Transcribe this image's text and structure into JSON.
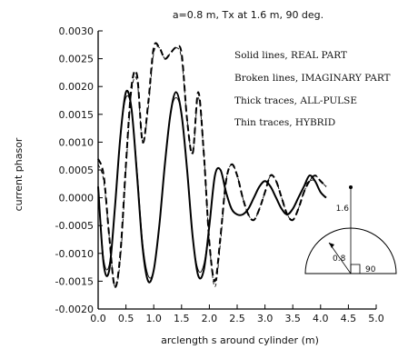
{
  "chart_data": {
    "type": "line",
    "title": "a=0.8 m, Tx at 1.6 m, 90 deg.",
    "xlabel": "arclength s around cylinder (m)",
    "ylabel": "current phasor",
    "xlim": [
      0.0,
      5.0
    ],
    "ylim": [
      -0.002,
      0.003
    ],
    "x_ticks": [
      "0.0",
      "0.5",
      "1.0",
      "1.5",
      "2.0",
      "2.5",
      "3.0",
      "3.5",
      "4.0",
      "4.5",
      "5.0"
    ],
    "y_ticks": [
      "-0.0020",
      "-0.0015",
      "-0.0010",
      "-0.0005",
      "0.0000",
      "0.0005",
      "0.0010",
      "0.0015",
      "0.0020",
      "0.0025",
      "0.0030"
    ],
    "grid": false,
    "legend": [
      "Solid lines, REAL PART",
      "Broken lines, IMAGINARY PART",
      "Thick traces, ALL-PULSE",
      "Thin traces, HYBRID"
    ],
    "legend_position": "top-right",
    "inset": {
      "height_label": "1.6",
      "radius_label": "0.8",
      "angle_label": "90"
    },
    "series": [
      {
        "style": "solid-thick",
        "x": [
          0.0,
          0.1,
          0.2,
          0.3,
          0.4,
          0.5,
          0.6,
          0.7,
          0.8,
          0.9,
          1.0,
          1.1,
          1.2,
          1.3,
          1.4,
          1.5,
          1.6,
          1.7,
          1.8,
          1.9,
          2.0,
          2.1,
          2.2,
          2.3,
          2.4,
          2.5,
          2.6,
          2.7,
          2.8,
          2.9,
          3.0,
          3.1,
          3.2,
          3.3,
          3.4,
          3.5,
          3.6,
          3.7,
          3.8,
          3.9,
          4.0,
          4.1
        ],
        "y": [
          0.0002,
          -0.0012,
          -0.0013,
          -0.0002,
          0.0011,
          0.0019,
          0.0016,
          0.0004,
          -0.0009,
          -0.0015,
          -0.0013,
          -0.0005,
          0.0006,
          0.0015,
          0.0019,
          0.0015,
          0.0005,
          -0.0007,
          -0.0014,
          -0.0013,
          -0.0005,
          0.0004,
          0.0005,
          0.0001,
          -0.0002,
          -0.0003,
          -0.0003,
          -0.0002,
          0.0,
          0.0002,
          0.0003,
          0.0002,
          0.0,
          -0.0002,
          -0.0003,
          -0.0002,
          0.0,
          0.0002,
          0.0004,
          0.0003,
          0.0001,
          0.0
        ]
      },
      {
        "style": "solid-thin",
        "x": [
          0.0,
          0.1,
          0.2,
          0.3,
          0.4,
          0.5,
          0.6,
          0.7,
          0.8,
          0.9,
          1.0,
          1.1,
          1.2,
          1.3,
          1.4,
          1.5,
          1.6,
          1.7,
          1.8,
          1.9,
          2.0,
          2.1,
          2.2,
          2.3,
          2.4,
          2.5,
          2.6,
          2.7,
          2.8,
          2.9,
          3.0,
          3.1,
          3.2,
          3.3,
          3.4,
          3.5,
          3.6,
          3.7,
          3.8,
          3.9,
          4.0,
          4.1
        ],
        "y": [
          0.0002,
          -0.0011,
          -0.0012,
          -0.0002,
          0.0011,
          0.0018,
          0.0016,
          0.0005,
          -0.0008,
          -0.0014,
          -0.0013,
          -0.0005,
          0.0006,
          0.0015,
          0.0018,
          0.0015,
          0.0005,
          -0.0007,
          -0.0013,
          -0.0012,
          -0.0005,
          0.0004,
          0.0005,
          0.0001,
          -0.0002,
          -0.0003,
          -0.0003,
          -0.0002,
          0.0,
          0.0002,
          0.0003,
          0.0002,
          0.0,
          -0.0002,
          -0.0003,
          -0.0002,
          0.0,
          0.0002,
          0.0003,
          0.0003,
          0.0001,
          0.0
        ]
      },
      {
        "style": "dashed-thick",
        "x": [
          0.0,
          0.1,
          0.2,
          0.3,
          0.4,
          0.5,
          0.6,
          0.7,
          0.8,
          0.9,
          1.0,
          1.1,
          1.2,
          1.3,
          1.4,
          1.5,
          1.6,
          1.7,
          1.8,
          1.9,
          2.0,
          2.1,
          2.2,
          2.3,
          2.4,
          2.5,
          2.6,
          2.7,
          2.8,
          2.9,
          3.0,
          3.1,
          3.2,
          3.3,
          3.4,
          3.5,
          3.6,
          3.7,
          3.8,
          3.9,
          4.0,
          4.1
        ],
        "y": [
          0.0007,
          0.0004,
          -0.0007,
          -0.0016,
          -0.001,
          0.0006,
          0.002,
          0.0022,
          0.001,
          0.0017,
          0.0027,
          0.0027,
          0.0025,
          0.0026,
          0.0027,
          0.0026,
          0.0014,
          0.0008,
          0.0019,
          0.0008,
          -0.0008,
          -0.0015,
          -0.0007,
          0.0003,
          0.0006,
          0.0004,
          0.0,
          -0.0003,
          -0.0004,
          -0.0002,
          0.0001,
          0.0004,
          0.0003,
          0.0,
          -0.0003,
          -0.0004,
          -0.0002,
          0.0001,
          0.0003,
          0.0004,
          0.0003,
          0.0002
        ]
      },
      {
        "style": "dashed-thin",
        "x": [
          0.0,
          0.1,
          0.2,
          0.3,
          0.4,
          0.5,
          0.6,
          0.7,
          0.8,
          0.9,
          1.0,
          1.1,
          1.2,
          1.3,
          1.4,
          1.5,
          1.6,
          1.7,
          1.8,
          1.9,
          2.0,
          2.1,
          2.2,
          2.3,
          2.4,
          2.5,
          2.6,
          2.7,
          2.8,
          2.9,
          3.0,
          3.1,
          3.2,
          3.3,
          3.4,
          3.5,
          3.6,
          3.7,
          3.8,
          3.9,
          4.0,
          4.1
        ],
        "y": [
          0.0006,
          0.0003,
          -0.0007,
          -0.0016,
          -0.0011,
          0.0005,
          0.0019,
          0.0021,
          0.001,
          0.0016,
          0.0026,
          0.0027,
          0.0025,
          0.0026,
          0.0027,
          0.0025,
          0.0014,
          0.0008,
          0.0018,
          0.0008,
          -0.0008,
          -0.0016,
          -0.0008,
          0.0003,
          0.0006,
          0.0004,
          0.0,
          -0.0003,
          -0.0004,
          -0.0002,
          0.0001,
          0.0004,
          0.0003,
          0.0,
          -0.0003,
          -0.0004,
          -0.0002,
          0.0001,
          0.0003,
          0.0004,
          0.0003,
          0.0002
        ]
      }
    ]
  }
}
